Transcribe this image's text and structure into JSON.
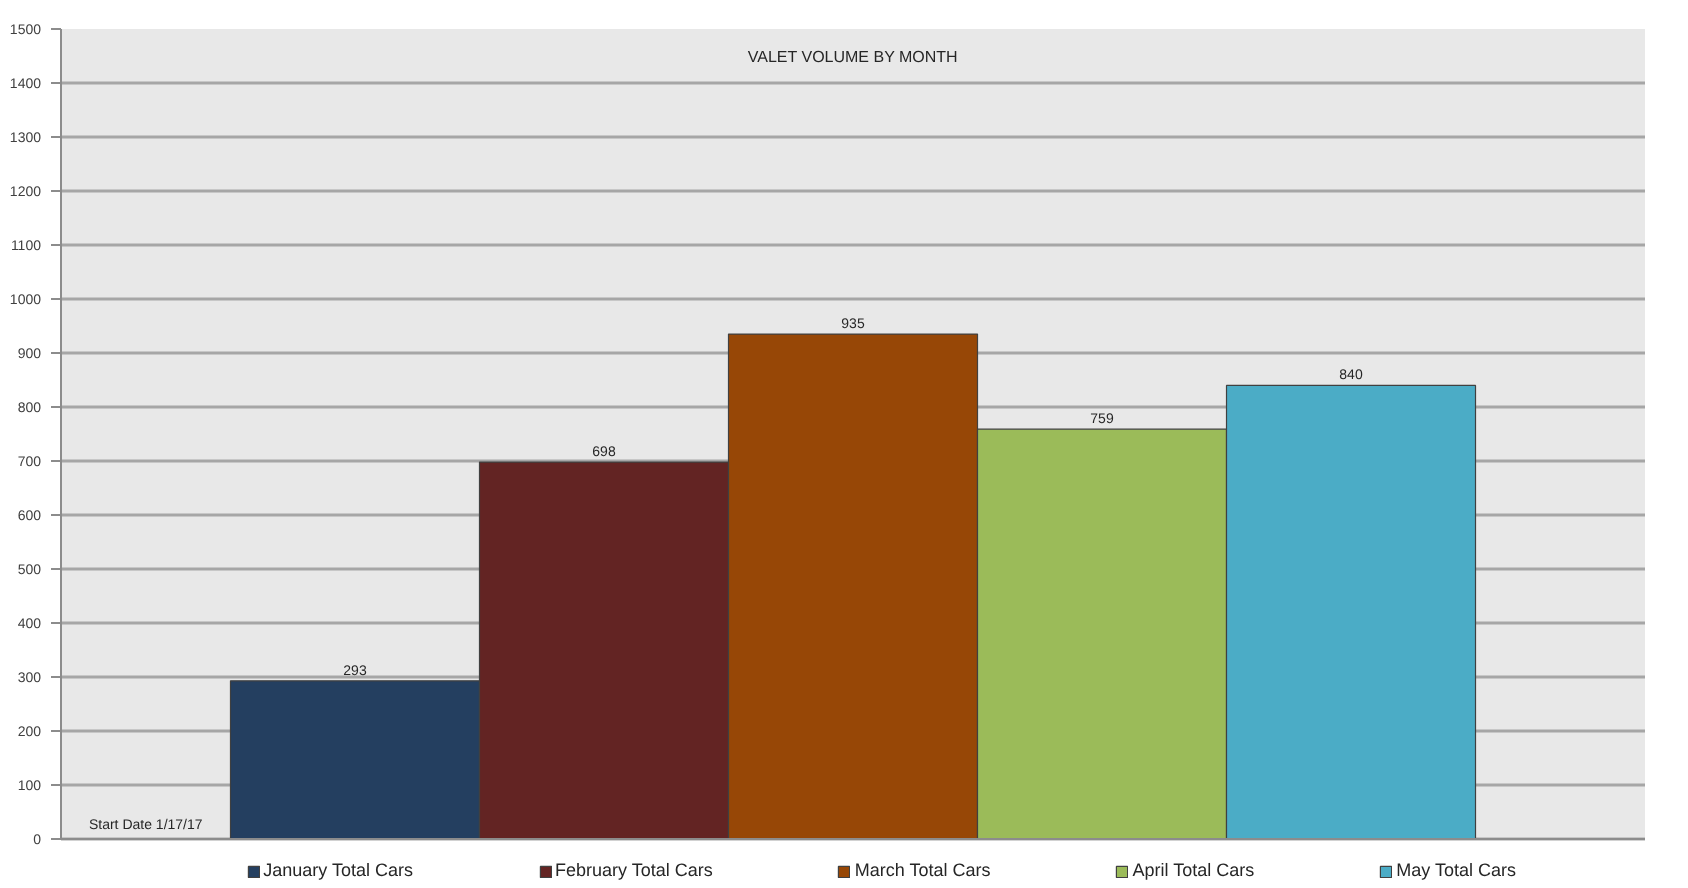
{
  "chart_data": {
    "type": "bar",
    "title": "VALET VOLUME BY MONTH",
    "categories": [
      null
    ],
    "series": [
      {
        "name": "January Total Cars",
        "color": "#243f60",
        "values": [
          293
        ]
      },
      {
        "name": "February Total Cars",
        "color": "#632423",
        "values": [
          698
        ]
      },
      {
        "name": "March Total Cars",
        "color": "#974706",
        "values": [
          935
        ]
      },
      {
        "name": "April Total Cars",
        "color": "#9bbb59",
        "values": [
          759
        ]
      },
      {
        "name": "May Total Cars",
        "color": "#4bacc6",
        "values": [
          840
        ]
      }
    ],
    "ylim": [
      0,
      1500
    ],
    "yticks": [
      0,
      100,
      200,
      300,
      400,
      500,
      600,
      700,
      800,
      900,
      1000,
      1100,
      1200,
      1300,
      1400,
      1500
    ],
    "grid": "y",
    "legend": "bottom",
    "data_labels": true,
    "tick_labels": "y",
    "annotations": [
      "Start Date 1/17/17"
    ]
  }
}
